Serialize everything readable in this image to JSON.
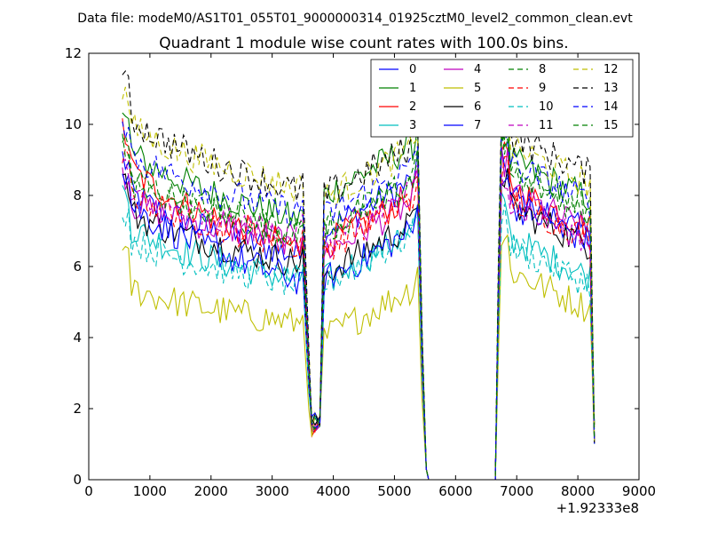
{
  "header": {
    "data_file": "Data file: modeM0/AS1T01_055T01_9000000314_01925cztM0_level2_common_clean.evt"
  },
  "chart_data": {
    "type": "line",
    "title": "Quadrant 1 module wise count rates with 100.0s bins.",
    "xlabel": "",
    "ylabel": "",
    "x_offset_label": "+1.92333e8",
    "xlim": [
      0,
      9000
    ],
    "ylim": [
      0,
      12
    ],
    "x_ticks": [
      0,
      1000,
      2000,
      3000,
      4000,
      5000,
      6000,
      7000,
      8000,
      9000
    ],
    "y_ticks": [
      0,
      2,
      4,
      6,
      8,
      10,
      12
    ],
    "grid": false,
    "legend_position": "top-right",
    "legend_columns": 4,
    "segments": [
      {
        "start": 550,
        "end": 3750,
        "step": 100,
        "dip_at": 3650
      },
      {
        "start": 3750,
        "end": 5550,
        "step": 100,
        "dip_at": 3750
      },
      {
        "start": 5550,
        "end": 6650,
        "step": 100,
        "zero": true
      },
      {
        "start": 6650,
        "end": 8250,
        "step": 100
      }
    ],
    "series": [
      {
        "name": "0",
        "color": "#0000ff",
        "dash": false,
        "levels": [
          8.4,
          6.3,
          7.6,
          7.2
        ]
      },
      {
        "name": "1",
        "color": "#008000",
        "dash": false,
        "levels": [
          9.6,
          7.3,
          8.6,
          8.2
        ]
      },
      {
        "name": "2",
        "color": "#ff0000",
        "dash": false,
        "levels": [
          9.2,
          6.5,
          7.2,
          7.4
        ]
      },
      {
        "name": "3",
        "color": "#00bfbf",
        "dash": false,
        "levels": [
          7.4,
          5.6,
          6.2,
          6.0
        ]
      },
      {
        "name": "4",
        "color": "#bf00bf",
        "dash": false,
        "levels": [
          8.0,
          6.7,
          7.0,
          7.3
        ]
      },
      {
        "name": "5",
        "color": "#bfbf00",
        "dash": false,
        "levels": [
          5.6,
          4.4,
          4.6,
          5.1
        ]
      },
      {
        "name": "6",
        "color": "#000000",
        "dash": false,
        "levels": [
          7.8,
          6.1,
          6.4,
          6.9
        ]
      },
      {
        "name": "7",
        "color": "#0000ff",
        "dash": false,
        "levels": [
          8.2,
          5.6,
          6.2,
          7.0
        ]
      },
      {
        "name": "8",
        "color": "#008000",
        "dash": true,
        "levels": [
          8.9,
          6.9,
          7.6,
          7.9
        ]
      },
      {
        "name": "9",
        "color": "#ff0000",
        "dash": true,
        "levels": [
          8.4,
          6.6,
          7.1,
          7.1
        ]
      },
      {
        "name": "10",
        "color": "#00bfbf",
        "dash": true,
        "levels": [
          7.0,
          5.5,
          6.1,
          5.8
        ]
      },
      {
        "name": "11",
        "color": "#bf00bf",
        "dash": true,
        "levels": [
          8.1,
          6.9,
          7.3,
          7.0
        ]
      },
      {
        "name": "12",
        "color": "#bfbf00",
        "dash": true,
        "levels": [
          10.3,
          8.2,
          8.5,
          8.6
        ]
      },
      {
        "name": "13",
        "color": "#000000",
        "dash": true,
        "levels": [
          10.6,
          8.1,
          8.6,
          8.9
        ]
      },
      {
        "name": "14",
        "color": "#0000ff",
        "dash": true,
        "levels": [
          9.5,
          7.5,
          8.0,
          8.1
        ]
      },
      {
        "name": "15",
        "color": "#008000",
        "dash": true,
        "levels": [
          8.7,
          7.0,
          7.6,
          7.8
        ]
      }
    ]
  }
}
